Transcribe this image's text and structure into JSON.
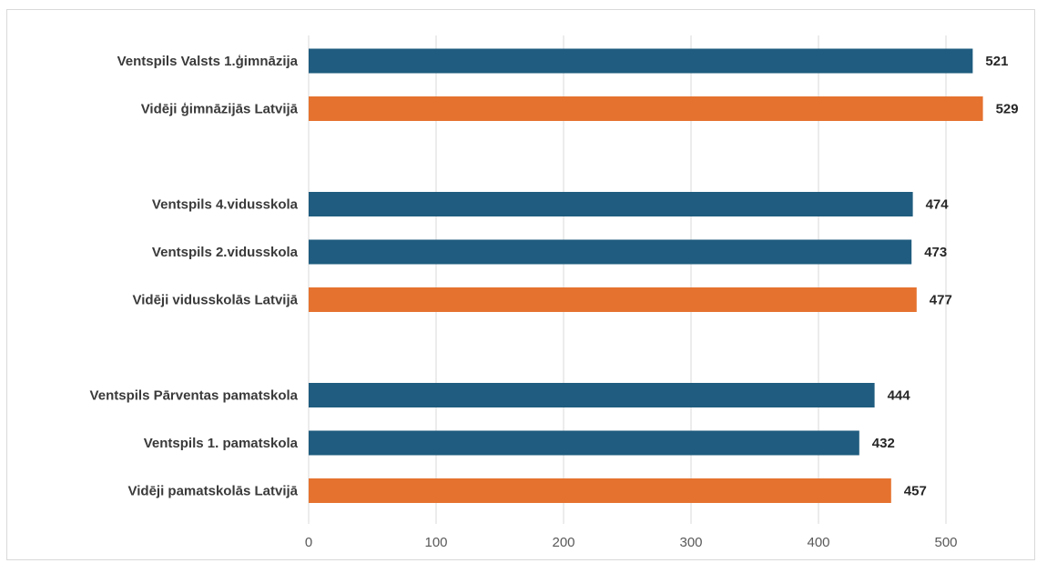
{
  "chart_data": {
    "type": "bar",
    "orientation": "horizontal",
    "categories": [
      "Ventspils Valsts 1.ģimnāzija",
      "Vidēji ģimnāzijās Latvijā",
      "",
      "Ventspils 4.vidusskola",
      "Ventspils 2.vidusskola",
      "Vidēji vidusskolās Latvijā",
      "",
      "Ventspils Pārventas pamatskola",
      "Ventspils 1. pamatskola",
      "Vidēji pamatskolās Latvijā"
    ],
    "values": [
      521,
      529,
      null,
      474,
      473,
      477,
      null,
      444,
      432,
      457
    ],
    "bar_colors": [
      "#1f5c7f",
      "#e5722f",
      null,
      "#1f5c7f",
      "#1f5c7f",
      "#e5722f",
      null,
      "#1f5c7f",
      "#1f5c7f",
      "#e5722f"
    ],
    "xlim": [
      0,
      530
    ],
    "xticks": [
      0,
      100,
      200,
      300,
      400,
      500
    ],
    "grid": "vertical",
    "data_labels": true,
    "legend": "none",
    "title": "",
    "xlabel": "",
    "ylabel": ""
  }
}
